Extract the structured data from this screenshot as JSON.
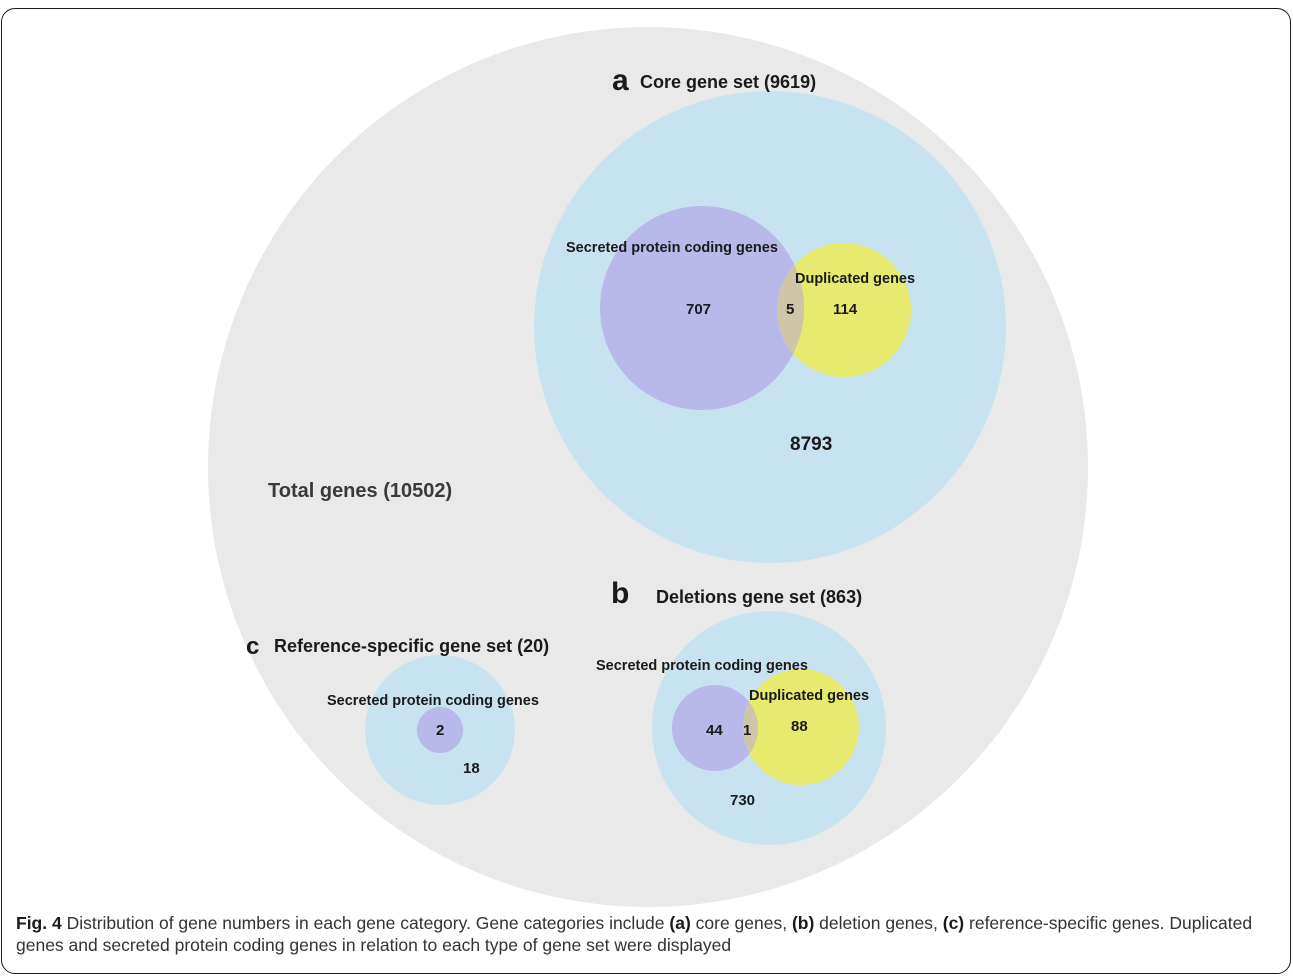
{
  "diagram": {
    "total": {
      "label": "Total genes (10502)",
      "color": "#e9e9e9"
    },
    "core": {
      "letter": "a",
      "title": "Core gene set (9619)",
      "secreted_label": "Secreted protein coding genes",
      "duplicated_label": "Duplicated genes",
      "secreted_only": "707",
      "overlap": "5",
      "duplicated_only": "114",
      "rest": "8793"
    },
    "deletions": {
      "letter": "b",
      "title": "Deletions gene set (863)",
      "secreted_label": "Secreted protein coding genes",
      "duplicated_label": "Duplicated genes",
      "secreted_only": "44",
      "overlap": "1",
      "duplicated_only": "88",
      "rest": "730"
    },
    "reference": {
      "letter": "c",
      "title": "Reference-specific gene set (20)",
      "secreted_label": "Secreted protein coding genes",
      "secreted_only": "2",
      "rest": "18"
    },
    "colors": {
      "set": "#c8e3f0",
      "secreted": "#b9b8ea",
      "duplicated": "#e6ea6e",
      "overlap": "#cfc6a8"
    }
  },
  "caption": {
    "fig_label": "Fig. 4",
    "text1": " Distribution of gene numbers in each gene category. Gene categories include ",
    "a": "(a)",
    "text2": " core genes, ",
    "b": "(b)",
    "text3": " deletion genes, ",
    "c": "(c)",
    "text4": " reference-specific genes. Duplicated genes and secreted protein coding genes in relation to each type of gene set were displayed"
  }
}
